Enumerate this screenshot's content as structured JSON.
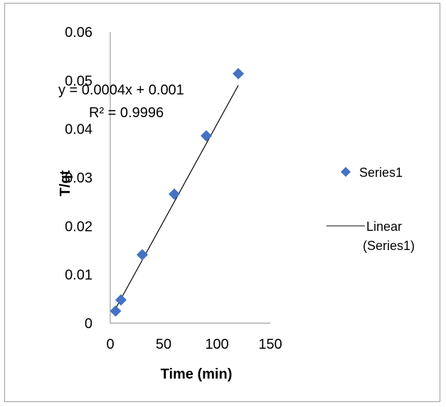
{
  "chart_data": {
    "type": "scatter",
    "xlabel": "Time (min)",
    "ylabel": "T/qt",
    "xlim": [
      0,
      150
    ],
    "ylim": [
      0,
      0.06
    ],
    "x_ticks": [
      "0",
      "50",
      "100",
      "150"
    ],
    "y_ticks": [
      "0",
      "0.01",
      "0.02",
      "0.03",
      "0.04",
      "0.05",
      "0.06"
    ],
    "series": [
      {
        "name": "Series1",
        "color": "#4472C4",
        "marker": "diamond",
        "points": [
          [
            5,
            0.0025
          ],
          [
            10,
            0.0048
          ],
          [
            30,
            0.0141
          ],
          [
            60,
            0.0266
          ],
          [
            90,
            0.0386
          ],
          [
            120,
            0.0514
          ]
        ]
      }
    ],
    "trendline": {
      "name": "Linear (Series1)",
      "name_lines": [
        "Linear",
        "(Series1)"
      ],
      "color": "#000000",
      "slope": 0.0004,
      "intercept": 0.001,
      "x_range": [
        5,
        120
      ],
      "equation": "y = 0.0004x + 0.001",
      "r_squared": "R² = 0.9996"
    },
    "legend_position": "right",
    "grid": false
  }
}
